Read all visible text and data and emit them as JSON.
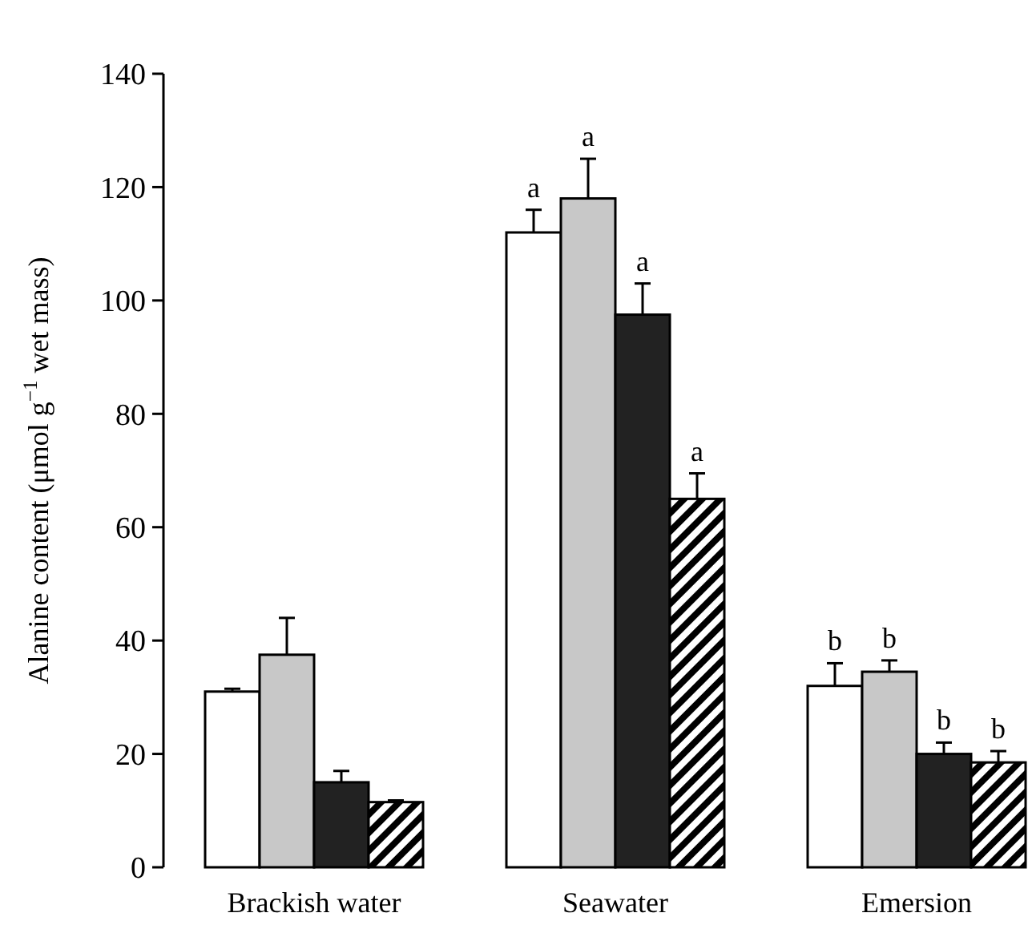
{
  "chart_data": {
    "type": "bar",
    "ylabel": "Alanine content (μmol g$^{−1}$ wet mass)",
    "categories": [
      "Brackish water",
      "Seawater",
      "Emersion"
    ],
    "series": [
      {
        "color": "#ffffff",
        "values": [
          31,
          112,
          32
        ],
        "errors": [
          0.5,
          4,
          4
        ]
      },
      {
        "color": "#c8c8c8",
        "values": [
          37.5,
          118,
          34.5
        ],
        "errors": [
          6.5,
          7,
          2
        ]
      },
      {
        "color": "#222222",
        "values": [
          15,
          97.5,
          20
        ],
        "errors": [
          2,
          5.5,
          2
        ]
      },
      {
        "color": "#000000",
        "values": [
          11.5,
          65,
          18.5
        ],
        "errors": [
          0.3,
          4.5,
          2
        ]
      }
    ],
    "ylim": [
      0,
      140
    ],
    "yticks": [
      0,
      20,
      40,
      60,
      80,
      100,
      120,
      140
    ],
    "grid": false,
    "annotations": [
      {
        "text": "a",
        "x": "Seawater",
        "y": 118
      },
      {
        "text": "a",
        "x": "Seawater",
        "y": 97.5
      },
      {
        "text": "a",
        "x": "Seawater",
        "y": 65
      },
      {
        "text": "a",
        "x": "Seawater",
        "y": 112
      },
      {
        "text": "b",
        "x": "Emersion",
        "y": 34.5
      },
      {
        "text": "b",
        "x": "Emersion",
        "y": 20
      },
      {
        "text": "b",
        "x": "Emersion",
        "y": 18.5
      },
      {
        "text": "b",
        "x": "Emersion",
        "y": 32
      }
    ]
  }
}
